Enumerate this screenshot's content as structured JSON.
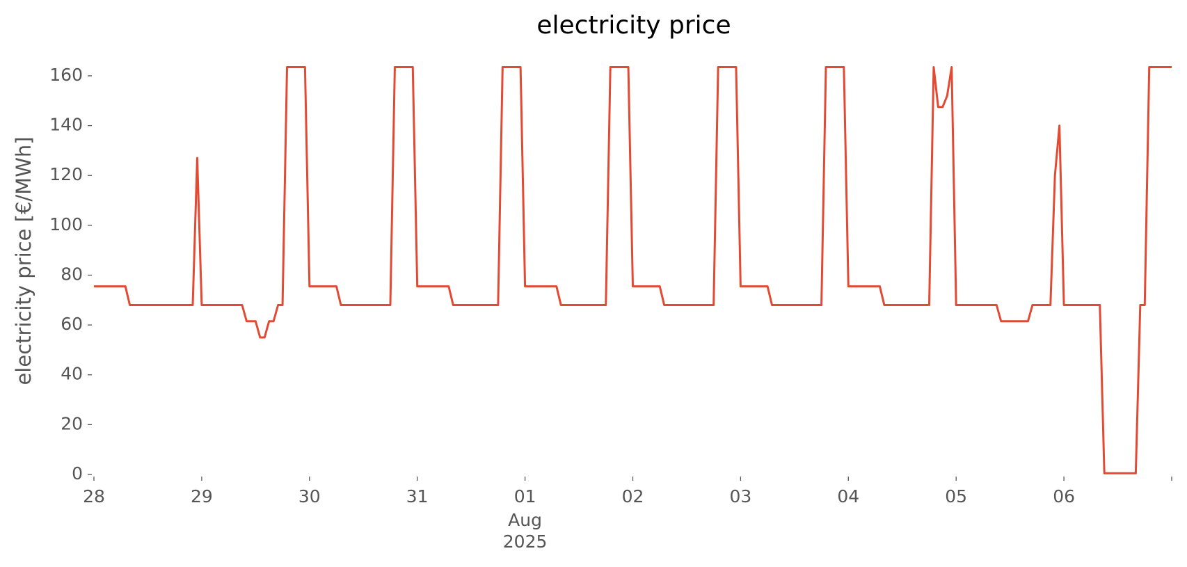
{
  "chart_data": {
    "type": "line",
    "title": "electricity price",
    "ylabel": "electricity price [€/MWh]",
    "color": "#e24a33",
    "x": [
      0,
      1,
      2,
      3,
      4,
      5,
      6,
      7,
      8,
      9,
      10,
      11,
      12,
      13,
      14,
      15,
      16,
      17,
      18,
      19,
      20,
      21,
      22,
      23,
      24,
      25,
      26,
      27,
      28,
      29,
      30,
      31,
      32,
      33,
      34,
      35,
      36,
      37,
      38,
      39,
      40,
      41,
      42,
      43,
      44,
      45,
      46,
      47,
      48,
      49,
      50,
      51,
      52,
      53,
      54,
      55,
      56,
      57,
      58,
      59,
      60,
      61,
      62,
      63,
      64,
      65,
      66,
      67,
      68,
      69,
      70,
      71,
      72,
      73,
      74,
      75,
      76,
      77,
      78,
      79,
      80,
      81,
      82,
      83,
      84,
      85,
      86,
      87,
      88,
      89,
      90,
      91,
      92,
      93,
      94,
      95,
      96,
      97,
      98,
      99,
      100,
      101,
      102,
      103,
      104,
      105,
      106,
      107,
      108,
      109,
      110,
      111,
      112,
      113,
      114,
      115,
      116,
      117,
      118,
      119,
      120,
      121,
      122,
      123,
      124,
      125,
      126,
      127,
      128,
      129,
      130,
      131,
      132,
      133,
      134,
      135,
      136,
      137,
      138,
      139,
      140,
      141,
      142,
      143,
      144,
      145,
      146,
      147,
      148,
      149,
      150,
      151,
      152,
      153,
      154,
      155,
      156,
      157,
      158,
      159,
      160,
      161,
      162,
      163,
      164,
      165,
      166,
      167,
      168,
      169,
      170,
      171,
      172,
      173,
      174,
      175,
      176,
      177,
      178,
      179,
      180,
      181,
      182,
      183,
      184,
      185,
      186,
      187,
      188,
      189,
      190,
      191,
      192,
      193,
      194,
      195,
      196,
      197,
      198,
      199,
      200,
      201,
      202,
      203,
      204,
      205,
      206,
      207,
      208,
      209,
      210,
      211,
      212,
      213,
      214,
      215,
      216,
      217,
      218,
      219,
      220,
      221,
      222,
      223,
      224,
      225,
      226,
      227,
      228,
      229,
      230,
      231,
      232,
      233,
      234,
      235,
      236,
      237,
      238,
      239,
      240
    ],
    "values": [
      75.5,
      75.5,
      75.5,
      75.5,
      75.5,
      75.5,
      75.5,
      75.5,
      68,
      68,
      68,
      68,
      68,
      68,
      68,
      68,
      68,
      68,
      68,
      68,
      68,
      68,
      68,
      127,
      68,
      68,
      68,
      68,
      68,
      68,
      68,
      68,
      68,
      68,
      61.5,
      61.5,
      61.5,
      55,
      55,
      61.5,
      61.5,
      68,
      68,
      163.5,
      163.5,
      163.5,
      163.5,
      163.5,
      75.5,
      75.5,
      75.5,
      75.5,
      75.5,
      75.5,
      75.5,
      68,
      68,
      68,
      68,
      68,
      68,
      68,
      68,
      68,
      68,
      68,
      68,
      163.5,
      163.5,
      163.5,
      163.5,
      163.5,
      75.5,
      75.5,
      75.5,
      75.5,
      75.5,
      75.5,
      75.5,
      75.5,
      68,
      68,
      68,
      68,
      68,
      68,
      68,
      68,
      68,
      68,
      68,
      163.5,
      163.5,
      163.5,
      163.5,
      163.5,
      75.5,
      75.5,
      75.5,
      75.5,
      75.5,
      75.5,
      75.5,
      75.5,
      68,
      68,
      68,
      68,
      68,
      68,
      68,
      68,
      68,
      68,
      68,
      163.5,
      163.5,
      163.5,
      163.5,
      163.5,
      75.5,
      75.5,
      75.5,
      75.5,
      75.5,
      75.5,
      75.5,
      68,
      68,
      68,
      68,
      68,
      68,
      68,
      68,
      68,
      68,
      68,
      68,
      163.5,
      163.5,
      163.5,
      163.5,
      163.5,
      75.5,
      75.5,
      75.5,
      75.5,
      75.5,
      75.5,
      75.5,
      68,
      68,
      68,
      68,
      68,
      68,
      68,
      68,
      68,
      68,
      68,
      68,
      163.5,
      163.5,
      163.5,
      163.5,
      163.5,
      75.5,
      75.5,
      75.5,
      75.5,
      75.5,
      75.5,
      75.5,
      75.5,
      68,
      68,
      68,
      68,
      68,
      68,
      68,
      68,
      68,
      68,
      68,
      163.5,
      147.5,
      147.5,
      152,
      163.5,
      68,
      68,
      68,
      68,
      68,
      68,
      68,
      68,
      68,
      68,
      61.5,
      61.5,
      61.5,
      61.5,
      61.5,
      61.5,
      61.5,
      68,
      68,
      68,
      68,
      68,
      120,
      140,
      68,
      68,
      68,
      68,
      68,
      68,
      68,
      68,
      68,
      0.5,
      0.5,
      0.5,
      0.5,
      0.5,
      0.5,
      0.5,
      0.5,
      68,
      68,
      163.5,
      163.5,
      163.5,
      163.5,
      163.5,
      163.5
    ],
    "xlim": [
      0,
      240
    ],
    "xticks": [
      {
        "value": 0,
        "label": "28"
      },
      {
        "value": 24,
        "label": "29"
      },
      {
        "value": 48,
        "label": "30"
      },
      {
        "value": 72,
        "label": "31"
      },
      {
        "value": 96,
        "label": "01"
      },
      {
        "value": 120,
        "label": "02"
      },
      {
        "value": 144,
        "label": "03"
      },
      {
        "value": 168,
        "label": "04"
      },
      {
        "value": 192,
        "label": "05"
      },
      {
        "value": 216,
        "label": "06"
      },
      {
        "value": 240,
        "label": null
      }
    ],
    "x_period_label": {
      "value": 96,
      "lines": [
        "Aug",
        "2025"
      ]
    },
    "ylim": [
      0,
      172
    ],
    "yticks": [
      0,
      20,
      40,
      60,
      80,
      100,
      120,
      140,
      160
    ]
  }
}
